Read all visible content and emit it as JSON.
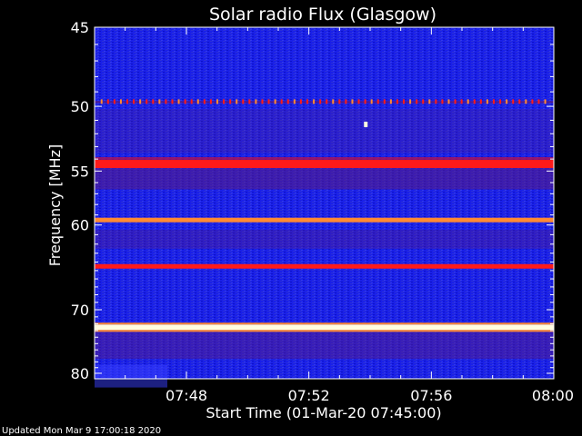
{
  "chart_data": {
    "type": "heatmap",
    "title": "Solar radio Flux (Glasgow)",
    "xlabel": "Start Time (01-Mar-20 07:45:00)",
    "ylabel_prefix": "Frequency ",
    "ylabel_unit": "MHz",
    "x_ticks": [
      {
        "minute": 3,
        "label": "07:48"
      },
      {
        "minute": 7,
        "label": "07:52"
      },
      {
        "minute": 11,
        "label": "07:56"
      },
      {
        "minute": 15,
        "label": "08:00"
      }
    ],
    "xlim_minutes": [
      0,
      15
    ],
    "y_ticks": [
      45,
      50,
      55,
      60,
      70,
      80
    ],
    "ylim_mhz": [
      45,
      81
    ],
    "y_scale": "reciprocal (1/frequency)",
    "colors": {
      "background": "#000000",
      "plot_background": "#1a20e8",
      "dark_band": "#5a1a80",
      "red_band": "#ff1a1a",
      "orange_band": "#ff8a33",
      "white_band": "#fffde0",
      "axes": "#ffffff"
    },
    "bands": [
      {
        "freq_mhz": 49.7,
        "kind": "intermittent red/orange spikes"
      },
      {
        "freq_mhz": 51.3,
        "kind": "single orange burst"
      },
      {
        "freq_mhz": 54.4,
        "kind": "strong red line"
      },
      {
        "freq_mhz": 59.5,
        "kind": "orange line"
      },
      {
        "freq_mhz": 64.5,
        "kind": "red line"
      },
      {
        "freq_mhz": 72.5,
        "kind": "bright white-yellow line"
      }
    ]
  },
  "footer": {
    "updated": "Updated Mon Mar  9 17:00:18 2020"
  }
}
